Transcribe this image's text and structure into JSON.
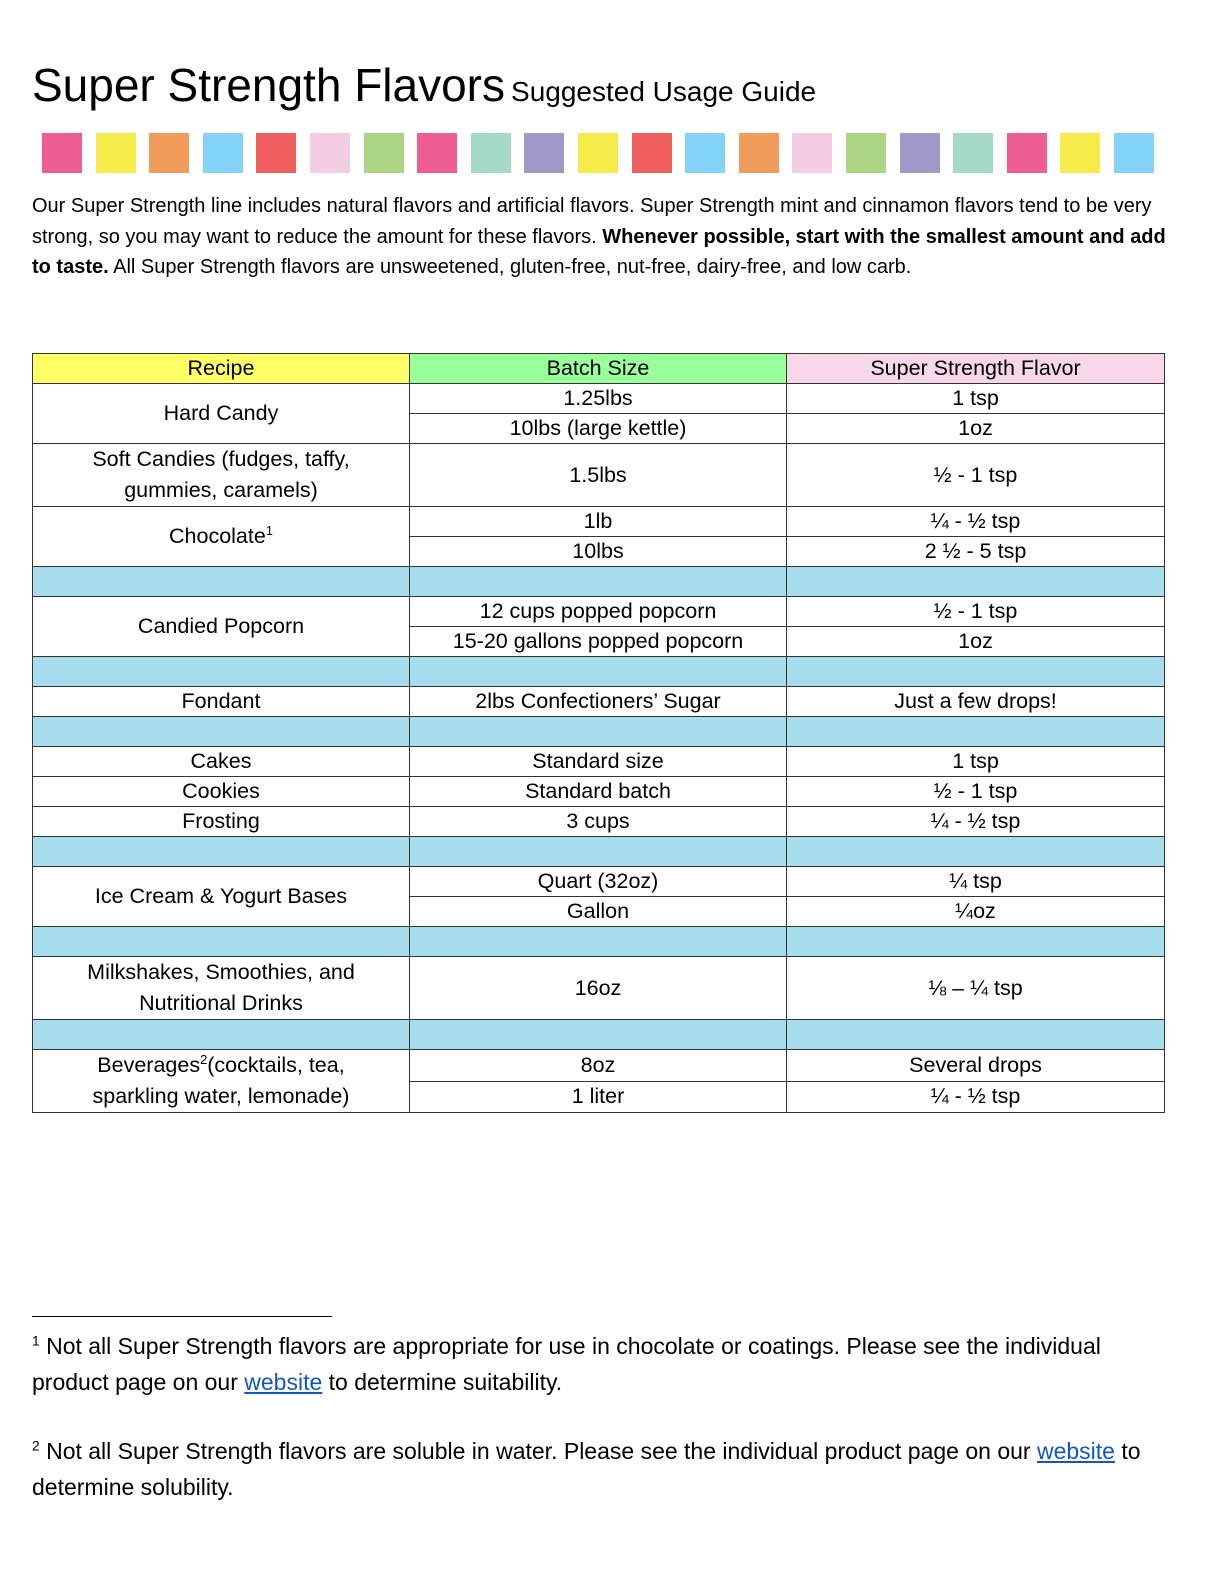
{
  "title": {
    "main": "Super Strength Flavors",
    "sub": "Suggested Usage Guide"
  },
  "square_colors": [
    "#ee5e92",
    "#f5ec4a",
    "#f29c5c",
    "#83d3f7",
    "#ef5f5e",
    "#f3cde3",
    "#acd485",
    "#ee5e92",
    "#a5dac9",
    "#a199c9",
    "#f5ec4a",
    "#ef5f5e",
    "#83d3f7",
    "#f29c5c",
    "#f3cde3",
    "#acd485",
    "#a199c9",
    "#a5dac9",
    "#ee5e92",
    "#f5ec4a",
    "#83d3f7"
  ],
  "intro": {
    "part1": "Our Super Strength line includes natural flavors and artificial flavors. Super Strength mint and cinnamon flavors tend to be very strong, so you may want to reduce the amount for these flavors. ",
    "bold": "Whenever possible, start with the smallest amount and add to taste.",
    "part2": " All Super Strength flavors are unsweetened, gluten-free, nut-free, dairy-free, and low carb."
  },
  "table": {
    "headers": [
      "Recipe",
      "Batch Size",
      "Super Strength Flavor"
    ],
    "header_colors": [
      "#ffff66",
      "#99ff99",
      "#f8d7e8"
    ],
    "spacer_color": "#a7dced",
    "rows": {
      "hard_candy": {
        "recipe": "Hard Candy",
        "b1": "1.25lbs",
        "f1": "1 tsp",
        "b2": "10lbs (large kettle)",
        "f2": "1oz"
      },
      "soft": {
        "recipe": "Soft Candies (fudges, taffy, gummies, caramels)",
        "b1": "1.5lbs",
        "f1": "½ - 1 tsp"
      },
      "chocolate": {
        "recipe": "Chocolate",
        "sup": "1",
        "b1": "1lb",
        "f1": "¼ - ½ tsp",
        "b2": "10lbs",
        "f2": "2 ½ - 5 tsp"
      },
      "popcorn": {
        "recipe": "Candied Popcorn",
        "b1": "12 cups popped popcorn",
        "f1": "½ - 1 tsp",
        "b2": "15-20 gallons popped popcorn",
        "f2": "1oz"
      },
      "fondant": {
        "recipe": "Fondant",
        "b1": "2lbs Confectioners’ Sugar",
        "f1": "Just a few drops!"
      },
      "cakes": {
        "recipe": "Cakes",
        "b1": "Standard size",
        "f1": "1 tsp"
      },
      "cookies": {
        "recipe": "Cookies",
        "b1": "Standard batch",
        "f1": "½ - 1 tsp"
      },
      "frosting": {
        "recipe": "Frosting",
        "b1": "3 cups",
        "f1": "¼ - ½ tsp"
      },
      "icecream": {
        "recipe": "Ice Cream & Yogurt Bases",
        "b1": "Quart (32oz)",
        "f1": "¼ tsp",
        "b2": "Gallon",
        "f2": "¼oz"
      },
      "milkshakes": {
        "recipe": "Milkshakes, Smoothies, and Nutritional Drinks",
        "b1": "16oz",
        "f1": "⅛ – ¼ tsp"
      },
      "beverages": {
        "recipe": "Beverages",
        "sup": "2",
        "recipe_rest": "(cocktails, tea, sparkling water, lemonade)",
        "b1": "8oz",
        "f1": "Several drops",
        "b2": "1 liter",
        "f2": "¼ - ½ tsp"
      }
    }
  },
  "footnotes": [
    {
      "num": "1",
      "text1": " Not all Super Strength flavors are appropriate for use in chocolate or coatings. Please see the individual product page on our ",
      "link": "website",
      "text2": " to determine suitability."
    },
    {
      "num": "2",
      "text1": " Not all Super Strength flavors are soluble in water. Please see the individual product page on our ",
      "link": "website",
      "text2": " to determine solubility."
    }
  ]
}
